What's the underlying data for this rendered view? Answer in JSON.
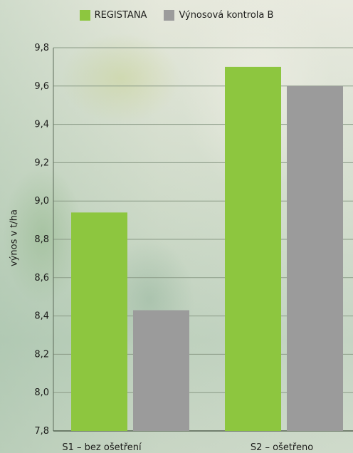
{
  "chart_data": {
    "type": "bar",
    "categories": [
      "S1 – bez ošetření",
      "S2 – ošetřeno"
    ],
    "series": [
      {
        "name": "REGISTANA",
        "color": "#8dc63f",
        "values": [
          8.94,
          9.7
        ]
      },
      {
        "name": "Výnosová kontrola B",
        "color": "#9b9b9b",
        "values": [
          8.43,
          9.6
        ]
      }
    ],
    "ylabel": "výnos v t/ha",
    "xlabel": "",
    "ylim": [
      7.8,
      9.8
    ],
    "yticks": [
      "7,8",
      "8,0",
      "8,2",
      "8,4",
      "8,6",
      "8,8",
      "9,0",
      "9,2",
      "9,4",
      "9,6",
      "9,8"
    ],
    "grid": true,
    "legend_position": "top"
  }
}
